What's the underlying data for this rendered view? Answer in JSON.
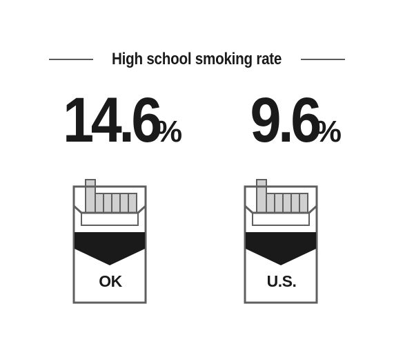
{
  "title": "High school smoking rate",
  "stats": [
    {
      "label": "OK",
      "value": "14.6",
      "unit": "%"
    },
    {
      "label": "U.S.",
      "value": "9.6",
      "unit": "%"
    }
  ],
  "colors": {
    "text": "#1a1a1a",
    "pack_outline": "#5f5f5f",
    "filter_gray": "#cfcfcf",
    "band_black": "#1a1a1a"
  },
  "icons": [
    "cigarette-pack-icon",
    "cigarette-pack-icon"
  ]
}
